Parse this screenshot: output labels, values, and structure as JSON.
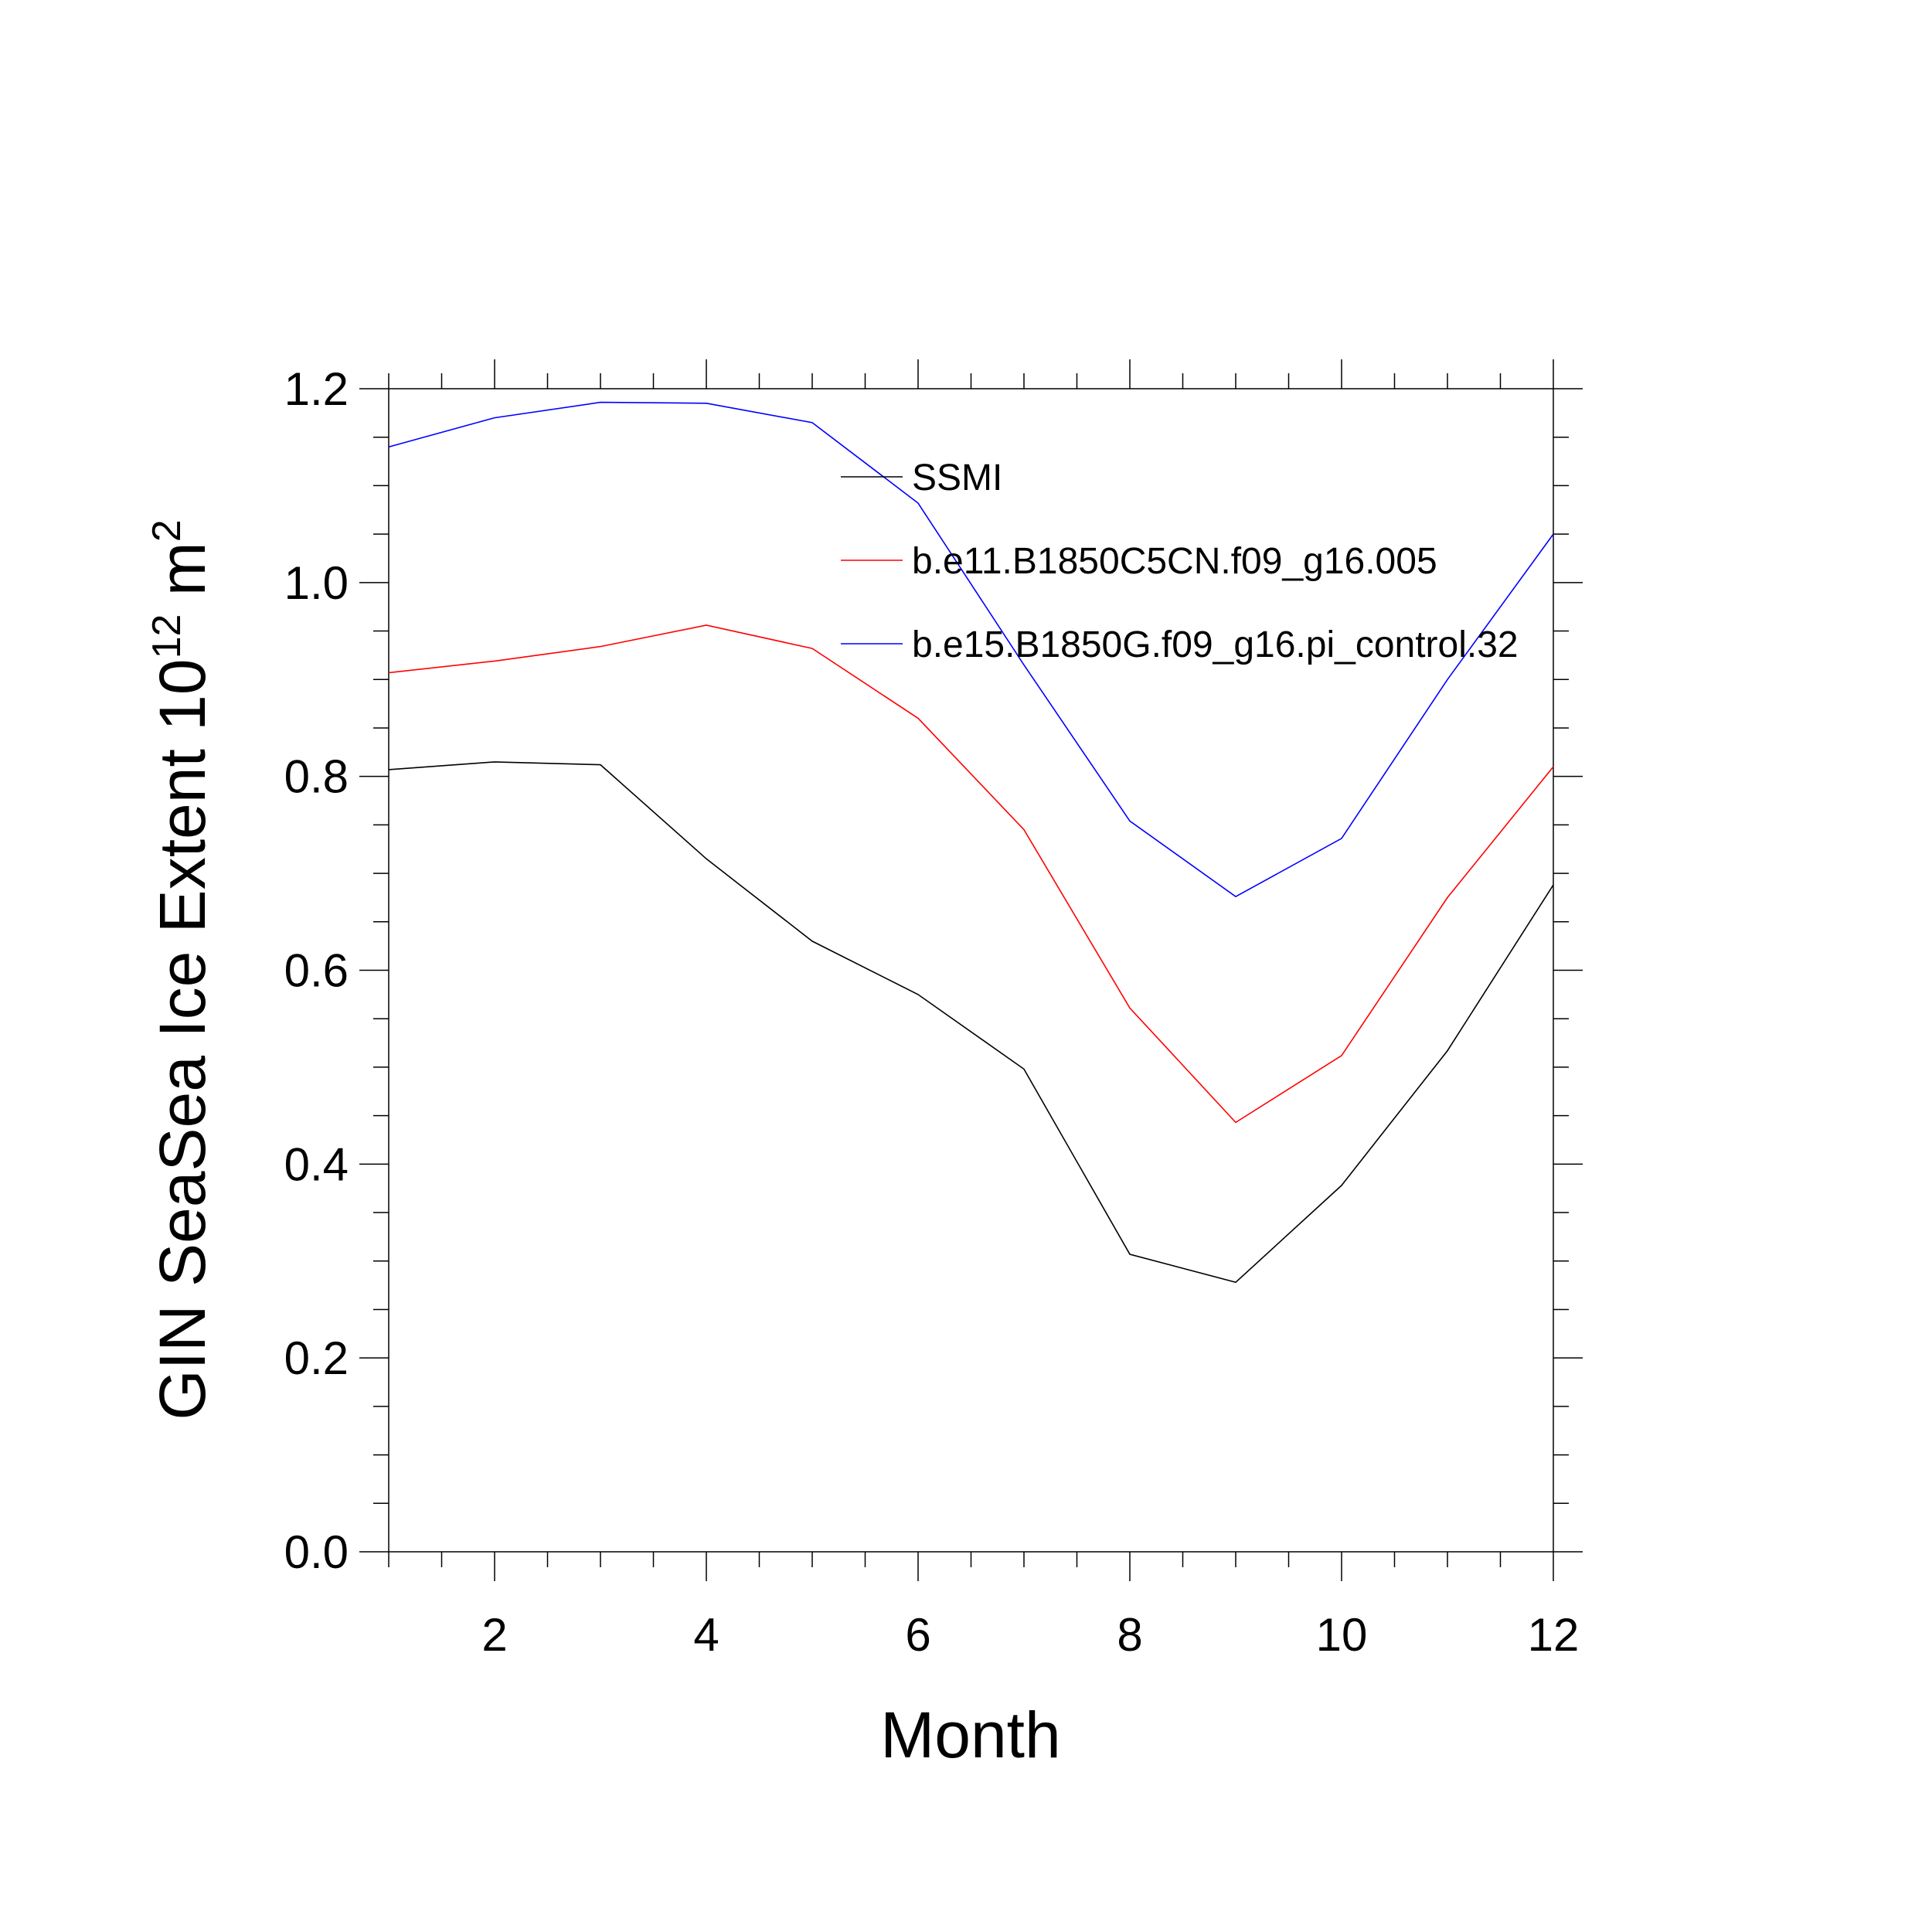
{
  "chart_data": {
    "type": "line",
    "title": "",
    "xlabel": "Month",
    "ylabel": {
      "text": "GIN SeaSea Ice Extent 10",
      "sup1": "12",
      "unit": " m",
      "sup2": "2"
    },
    "xlim": [
      1,
      12
    ],
    "ylim": [
      0,
      1.2
    ],
    "x_ticks": [
      2,
      4,
      6,
      8,
      10,
      12
    ],
    "x_tick_labels": [
      "2",
      "4",
      "6",
      "8",
      "10",
      "12"
    ],
    "y_ticks": [
      0,
      0.2,
      0.4,
      0.6,
      0.8,
      1.0,
      1.2
    ],
    "y_tick_labels": [
      "0.0",
      "0.2",
      "0.4",
      "0.6",
      "0.8",
      "1.0",
      "1.2"
    ],
    "grid": false,
    "legend_position": "top-right",
    "x": [
      1,
      2,
      3,
      4,
      5,
      6,
      7,
      8,
      9,
      10,
      11,
      12
    ],
    "series": [
      {
        "name": "SSMI",
        "color": "#000000",
        "values": [
          0.807,
          0.815,
          0.812,
          0.715,
          0.63,
          0.575,
          0.498,
          0.307,
          0.278,
          0.378,
          0.517,
          0.688
        ]
      },
      {
        "name": "b.e11.B1850C5CN.f09_g16.005",
        "color": "#ff0000",
        "values": [
          0.907,
          0.919,
          0.934,
          0.956,
          0.932,
          0.86,
          0.745,
          0.561,
          0.443,
          0.512,
          0.675,
          0.81
        ]
      },
      {
        "name": "b.e15.B1850G.f09_g16.pi_control.32",
        "color": "#0000ff",
        "values": [
          1.14,
          1.17,
          1.186,
          1.185,
          1.165,
          1.082,
          0.915,
          0.754,
          0.676,
          0.736,
          0.9,
          1.05
        ]
      }
    ]
  }
}
